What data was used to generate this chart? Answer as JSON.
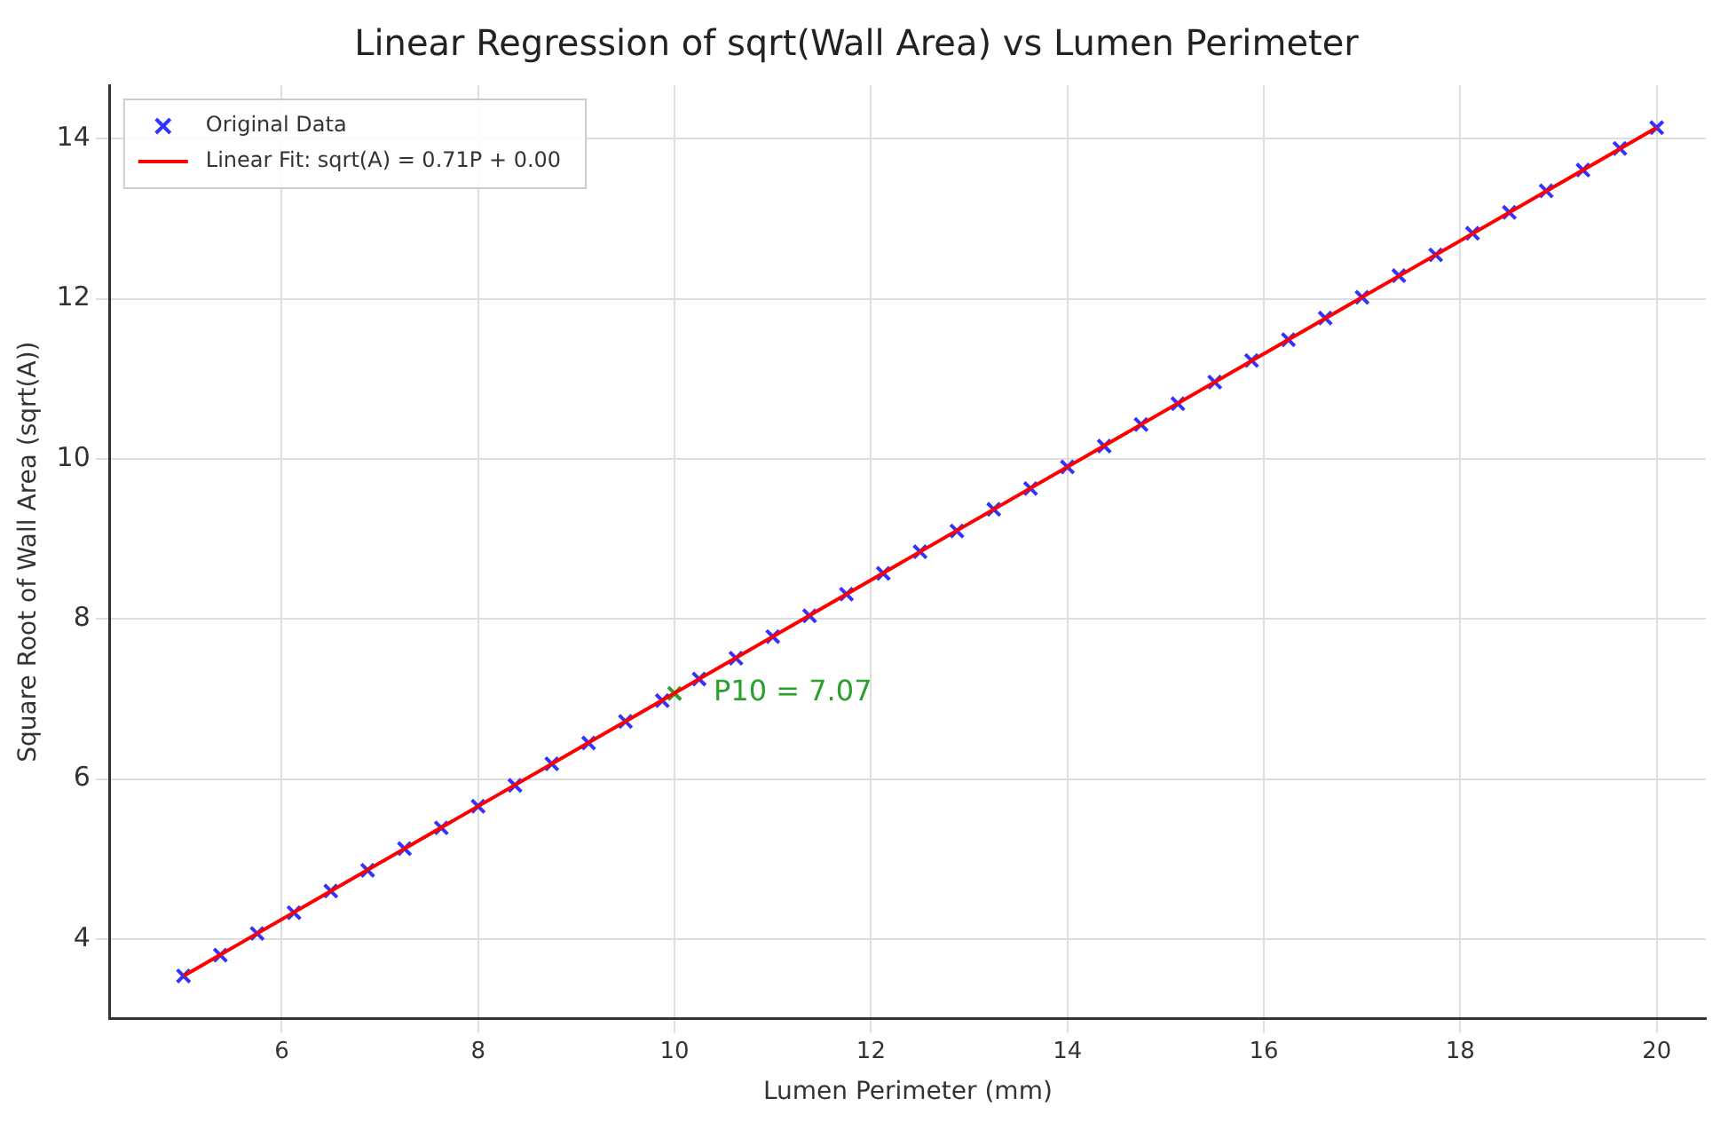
{
  "chart_data": {
    "type": "scatter",
    "title": "Linear Regression of sqrt(Wall Area) vs Lumen Perimeter",
    "xlabel": "Lumen Perimeter (mm)",
    "ylabel": "Square Root of Wall Area (sqrt(A))",
    "xlim": [
      4.25,
      20.5
    ],
    "ylim": [
      3.01,
      14.67
    ],
    "xticks": [
      6,
      8,
      10,
      12,
      14,
      16,
      18,
      20
    ],
    "yticks": [
      4,
      6,
      8,
      10,
      12,
      14
    ],
    "grid": true,
    "legend": "top left",
    "annotations": [
      {
        "text": "P10 = 7.07",
        "x": 10,
        "y": 7.07
      }
    ],
    "series": [
      {
        "name": "Original Data",
        "marker": "cross",
        "color": "#3333ff",
        "x": [
          5,
          5.375,
          5.75,
          6.125,
          6.5,
          6.875,
          7.25,
          7.625,
          8,
          8.375,
          8.75,
          9.125,
          9.5,
          9.875,
          10.25,
          10.625,
          11,
          11.375,
          11.75,
          12.125,
          12.5,
          12.875,
          13.25,
          13.625,
          14,
          14.375,
          14.75,
          15.125,
          15.5,
          15.875,
          16.25,
          16.625,
          17,
          17.375,
          17.75,
          18.125,
          18.5,
          18.875,
          19.25,
          19.625,
          20
        ],
        "values": [
          3.54,
          3.8,
          4.07,
          4.33,
          4.6,
          4.86,
          5.13,
          5.39,
          5.66,
          5.92,
          6.19,
          6.45,
          6.72,
          6.98,
          7.25,
          7.51,
          7.78,
          8.04,
          8.31,
          8.57,
          8.84,
          9.1,
          9.37,
          9.63,
          9.9,
          10.16,
          10.43,
          10.69,
          10.96,
          11.23,
          11.49,
          11.76,
          12.02,
          12.29,
          12.55,
          12.82,
          13.08,
          13.35,
          13.61,
          13.88,
          14.14
        ]
      },
      {
        "name": "Linear Fit: sqrt(A) = 0.71P + 0.00",
        "type": "line",
        "marker": "none",
        "line_style": "solid",
        "color": "#ff0000",
        "x": [
          5,
          20
        ],
        "values": [
          3.54,
          14.14
        ]
      },
      {
        "marker": "cross",
        "color": "#2ca02c",
        "x": [
          10
        ],
        "values": [
          7.07
        ]
      }
    ]
  }
}
